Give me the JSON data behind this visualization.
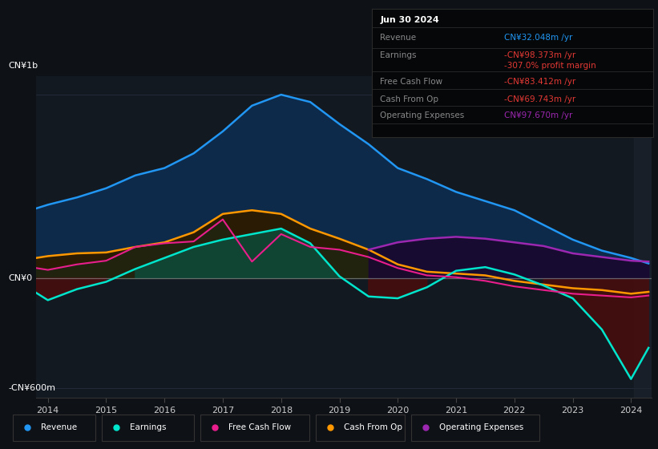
{
  "bg_color": "#0e1116",
  "plot_bg_color": "#131920",
  "title": "Jun 30 2024",
  "ylabel_top": "CN¥1b",
  "ylabel_bottom": "-CN¥600m",
  "ylabel_zero": "CN¥0",
  "x_years": [
    2014,
    2015,
    2016,
    2017,
    2018,
    2019,
    2020,
    2021,
    2022,
    2023,
    2024
  ],
  "revenue_color": "#2196f3",
  "earnings_color": "#00e5cc",
  "free_cashflow_color": "#e91e8c",
  "cash_from_op_color": "#ff9800",
  "op_expenses_color": "#9c27b0",
  "revenue_fill_color": "#0d2a4a",
  "earnings_fill_pos_color": "#0d4a3a",
  "earnings_fill_neg_color": "#4a0d0d",
  "cash_from_op_fill_color": "#2a1e05",
  "op_expenses_fill_color": "#1a0d30",
  "info_box_bg": "#050708",
  "info_box_border": "#2a2a2a",
  "info_label_color": "#888888",
  "revenue_val_color": "#2196f3",
  "earnings_val_color": "#e53935",
  "margin_val_color": "#e53935",
  "fcf_val_color": "#e53935",
  "cashop_val_color": "#e53935",
  "opex_val_color": "#9c27b0",
  "revenue_x": [
    2013.8,
    2014.0,
    2014.5,
    2015.0,
    2015.5,
    2016.0,
    2016.5,
    2017.0,
    2017.5,
    2018.0,
    2018.5,
    2019.0,
    2019.5,
    2020.0,
    2020.5,
    2021.0,
    2021.5,
    2022.0,
    2022.5,
    2023.0,
    2023.5,
    2024.0,
    2024.3
  ],
  "revenue_y": [
    380,
    400,
    440,
    490,
    560,
    600,
    680,
    800,
    940,
    1000,
    960,
    840,
    730,
    600,
    540,
    470,
    420,
    370,
    290,
    210,
    150,
    110,
    80
  ],
  "earnings_x": [
    2013.8,
    2014.0,
    2014.5,
    2015.0,
    2015.5,
    2016.0,
    2016.5,
    2017.0,
    2017.5,
    2018.0,
    2018.5,
    2019.0,
    2019.5,
    2020.0,
    2020.5,
    2021.0,
    2021.5,
    2022.0,
    2022.5,
    2023.0,
    2023.5,
    2024.0,
    2024.3
  ],
  "earnings_y": [
    -80,
    -120,
    -60,
    -20,
    50,
    110,
    170,
    210,
    240,
    270,
    190,
    10,
    -100,
    -110,
    -50,
    40,
    60,
    20,
    -40,
    -110,
    -280,
    -550,
    -380
  ],
  "cash_from_op_x": [
    2013.8,
    2014.0,
    2014.5,
    2015.0,
    2015.5,
    2016.0,
    2016.5,
    2017.0,
    2017.5,
    2018.0,
    2018.5,
    2019.0,
    2019.5,
    2020.0,
    2020.5,
    2021.0,
    2021.5,
    2022.0,
    2022.5,
    2023.0,
    2023.5,
    2024.0,
    2024.3
  ],
  "cash_from_op_y": [
    110,
    120,
    135,
    140,
    170,
    195,
    250,
    350,
    370,
    350,
    270,
    215,
    155,
    75,
    35,
    25,
    15,
    -15,
    -35,
    -55,
    -65,
    -85,
    -75
  ],
  "free_cashflow_x": [
    2013.8,
    2014.0,
    2014.5,
    2015.0,
    2015.5,
    2016.0,
    2016.5,
    2017.0,
    2017.5,
    2018.0,
    2018.5,
    2019.0,
    2019.5,
    2020.0,
    2020.5,
    2021.0,
    2021.5,
    2022.0,
    2022.5,
    2023.0,
    2023.5,
    2024.0,
    2024.3
  ],
  "free_cashflow_y": [
    55,
    45,
    75,
    95,
    170,
    190,
    200,
    320,
    90,
    240,
    170,
    155,
    115,
    55,
    15,
    5,
    -15,
    -45,
    -65,
    -85,
    -95,
    -105,
    -95
  ],
  "op_expenses_x": [
    2013.8,
    2014.0,
    2014.5,
    2015.0,
    2015.5,
    2016.0,
    2016.5,
    2017.0,
    2017.5,
    2018.0,
    2018.5,
    2019.0,
    2019.5,
    2020.0,
    2020.5,
    2021.0,
    2021.5,
    2022.0,
    2022.5,
    2023.0,
    2023.5,
    2024.0,
    2024.3
  ],
  "op_expenses_y": [
    0,
    0,
    0,
    0,
    0,
    0,
    0,
    0,
    0,
    0,
    0,
    0,
    155,
    195,
    215,
    225,
    215,
    195,
    175,
    135,
    115,
    95,
    90
  ],
  "legend_items": [
    {
      "label": "Revenue",
      "color": "#2196f3"
    },
    {
      "label": "Earnings",
      "color": "#00e5cc"
    },
    {
      "label": "Free Cash Flow",
      "color": "#e91e8c"
    },
    {
      "label": "Cash From Op",
      "color": "#ff9800"
    },
    {
      "label": "Operating Expenses",
      "color": "#9c27b0"
    }
  ],
  "info_rows": [
    {
      "label": "Revenue",
      "value": "CN¥32.048m /yr",
      "value_color": "#2196f3",
      "label_color": "#888888"
    },
    {
      "label": "Earnings",
      "value": "-CN¥98.373m /yr",
      "value_color": "#e53935",
      "label_color": "#888888"
    },
    {
      "label": "",
      "value": "-307.0% profit margin",
      "value_color": "#e53935",
      "label_color": "#888888"
    },
    {
      "label": "Free Cash Flow",
      "value": "-CN¥83.412m /yr",
      "value_color": "#e53935",
      "label_color": "#888888"
    },
    {
      "label": "Cash From Op",
      "value": "-CN¥69.743m /yr",
      "value_color": "#e53935",
      "label_color": "#888888"
    },
    {
      "label": "Operating Expenses",
      "value": "CN¥97.670m /yr",
      "value_color": "#9c27b0",
      "label_color": "#888888"
    }
  ]
}
